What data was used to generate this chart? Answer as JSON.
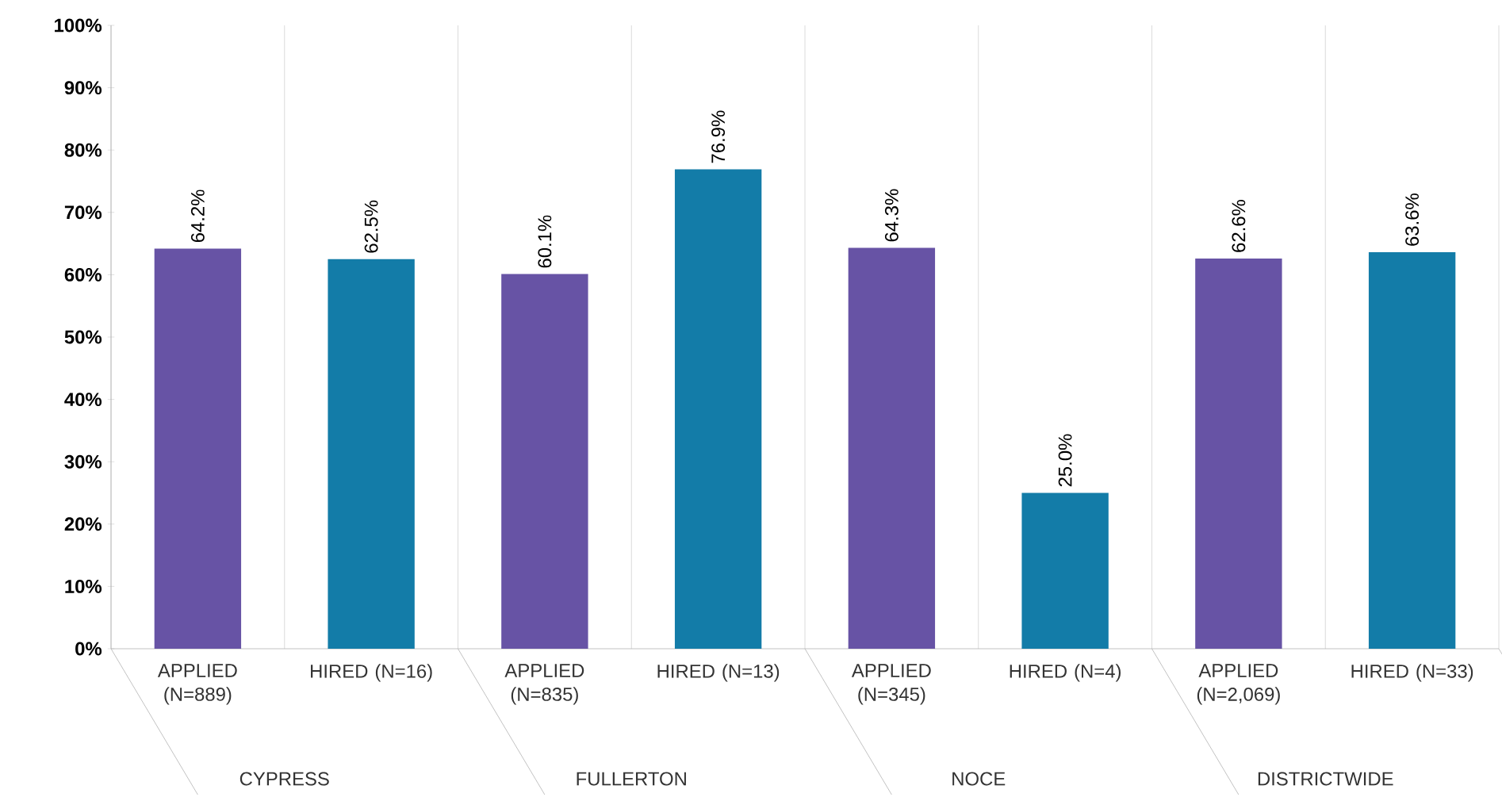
{
  "chart_data": {
    "type": "bar",
    "categories": [
      "APPLIED (N=889)",
      "HIRED (N=16)",
      "APPLIED (N=835)",
      "HIRED (N=13)",
      "APPLIED (N=345)",
      "HIRED (N=4)",
      "APPLIED (N=2,069)",
      "HIRED (N=33)"
    ],
    "values": [
      64.2,
      62.5,
      60.1,
      76.9,
      64.3,
      25.0,
      62.6,
      63.6
    ],
    "value_labels": [
      "64.2%",
      "62.5%",
      "60.1%",
      "76.9%",
      "64.3%",
      "25.0%",
      "62.6%",
      "63.6%"
    ],
    "colors": [
      "#6753a5",
      "#137ca8",
      "#6753a5",
      "#137ca8",
      "#6753a5",
      "#137ca8",
      "#6753a5",
      "#137ca8"
    ],
    "ylim": [
      0,
      100
    ],
    "yticks": [
      {
        "value": 0,
        "label": "0%"
      },
      {
        "value": 10,
        "label": "10%"
      },
      {
        "value": 20,
        "label": "20%"
      },
      {
        "value": 30,
        "label": "30%"
      },
      {
        "value": 40,
        "label": "40%"
      },
      {
        "value": 50,
        "label": "50%"
      },
      {
        "value": 60,
        "label": "60%"
      },
      {
        "value": 70,
        "label": "70%"
      },
      {
        "value": 80,
        "label": "80%"
      },
      {
        "value": 90,
        "label": "90%"
      },
      {
        "value": 100,
        "label": "100%"
      }
    ],
    "grid": "x",
    "annotations": [
      "CYPRESS",
      "FULLERTON",
      "NOCE",
      "DISTRICTWIDE"
    ]
  }
}
